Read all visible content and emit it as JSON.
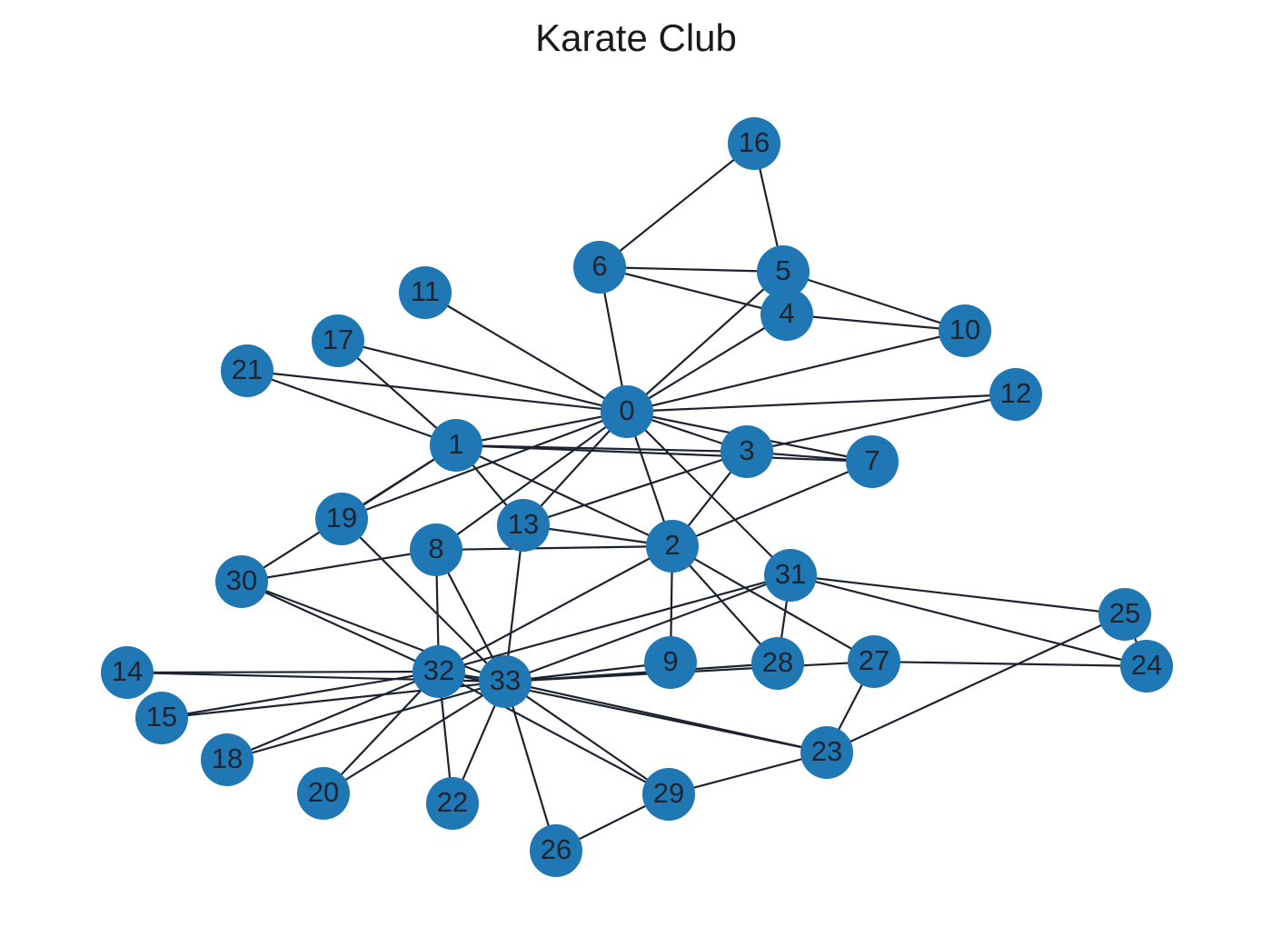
{
  "title": "Karate Club",
  "colors": {
    "node": "#1f77b4",
    "edge": "#1c2230",
    "label": "#1f2430",
    "background": "#ffffff"
  },
  "nodes": [
    {
      "id": 0,
      "label": "0"
    },
    {
      "id": 1,
      "label": "1"
    },
    {
      "id": 2,
      "label": "2"
    },
    {
      "id": 3,
      "label": "3"
    },
    {
      "id": 4,
      "label": "4"
    },
    {
      "id": 5,
      "label": "5"
    },
    {
      "id": 6,
      "label": "6"
    },
    {
      "id": 7,
      "label": "7"
    },
    {
      "id": 8,
      "label": "8"
    },
    {
      "id": 9,
      "label": "9"
    },
    {
      "id": 10,
      "label": "10"
    },
    {
      "id": 11,
      "label": "11"
    },
    {
      "id": 12,
      "label": "12"
    },
    {
      "id": 13,
      "label": "13"
    },
    {
      "id": 14,
      "label": "14"
    },
    {
      "id": 15,
      "label": "15"
    },
    {
      "id": 16,
      "label": "16"
    },
    {
      "id": 17,
      "label": "17"
    },
    {
      "id": 18,
      "label": "18"
    },
    {
      "id": 19,
      "label": "19"
    },
    {
      "id": 20,
      "label": "20"
    },
    {
      "id": 21,
      "label": "21"
    },
    {
      "id": 22,
      "label": "22"
    },
    {
      "id": 23,
      "label": "23"
    },
    {
      "id": 24,
      "label": "24"
    },
    {
      "id": 25,
      "label": "25"
    },
    {
      "id": 26,
      "label": "26"
    },
    {
      "id": 27,
      "label": "27"
    },
    {
      "id": 28,
      "label": "28"
    },
    {
      "id": 29,
      "label": "29"
    },
    {
      "id": 30,
      "label": "30"
    },
    {
      "id": 31,
      "label": "31"
    },
    {
      "id": 32,
      "label": "32"
    },
    {
      "id": 33,
      "label": "33"
    }
  ],
  "edges": [
    [
      0,
      1
    ],
    [
      0,
      2
    ],
    [
      0,
      3
    ],
    [
      0,
      4
    ],
    [
      0,
      5
    ],
    [
      0,
      6
    ],
    [
      0,
      7
    ],
    [
      0,
      8
    ],
    [
      0,
      10
    ],
    [
      0,
      11
    ],
    [
      0,
      12
    ],
    [
      0,
      13
    ],
    [
      0,
      17
    ],
    [
      0,
      19
    ],
    [
      0,
      21
    ],
    [
      0,
      31
    ],
    [
      1,
      2
    ],
    [
      1,
      3
    ],
    [
      1,
      7
    ],
    [
      1,
      13
    ],
    [
      1,
      17
    ],
    [
      1,
      19
    ],
    [
      1,
      21
    ],
    [
      1,
      30
    ],
    [
      2,
      3
    ],
    [
      2,
      7
    ],
    [
      2,
      8
    ],
    [
      2,
      9
    ],
    [
      2,
      13
    ],
    [
      2,
      27
    ],
    [
      2,
      28
    ],
    [
      2,
      32
    ],
    [
      3,
      7
    ],
    [
      3,
      12
    ],
    [
      3,
      13
    ],
    [
      4,
      6
    ],
    [
      4,
      10
    ],
    [
      5,
      6
    ],
    [
      5,
      10
    ],
    [
      5,
      16
    ],
    [
      6,
      16
    ],
    [
      8,
      30
    ],
    [
      8,
      32
    ],
    [
      8,
      33
    ],
    [
      9,
      33
    ],
    [
      13,
      33
    ],
    [
      14,
      32
    ],
    [
      14,
      33
    ],
    [
      15,
      32
    ],
    [
      15,
      33
    ],
    [
      18,
      32
    ],
    [
      18,
      33
    ],
    [
      19,
      33
    ],
    [
      20,
      32
    ],
    [
      20,
      33
    ],
    [
      22,
      32
    ],
    [
      22,
      33
    ],
    [
      23,
      25
    ],
    [
      23,
      27
    ],
    [
      23,
      29
    ],
    [
      23,
      32
    ],
    [
      23,
      33
    ],
    [
      24,
      25
    ],
    [
      24,
      27
    ],
    [
      24,
      31
    ],
    [
      25,
      31
    ],
    [
      26,
      29
    ],
    [
      26,
      33
    ],
    [
      27,
      33
    ],
    [
      28,
      31
    ],
    [
      28,
      33
    ],
    [
      29,
      32
    ],
    [
      29,
      33
    ],
    [
      30,
      32
    ],
    [
      30,
      33
    ],
    [
      31,
      32
    ],
    [
      31,
      33
    ],
    [
      32,
      33
    ]
  ]
}
